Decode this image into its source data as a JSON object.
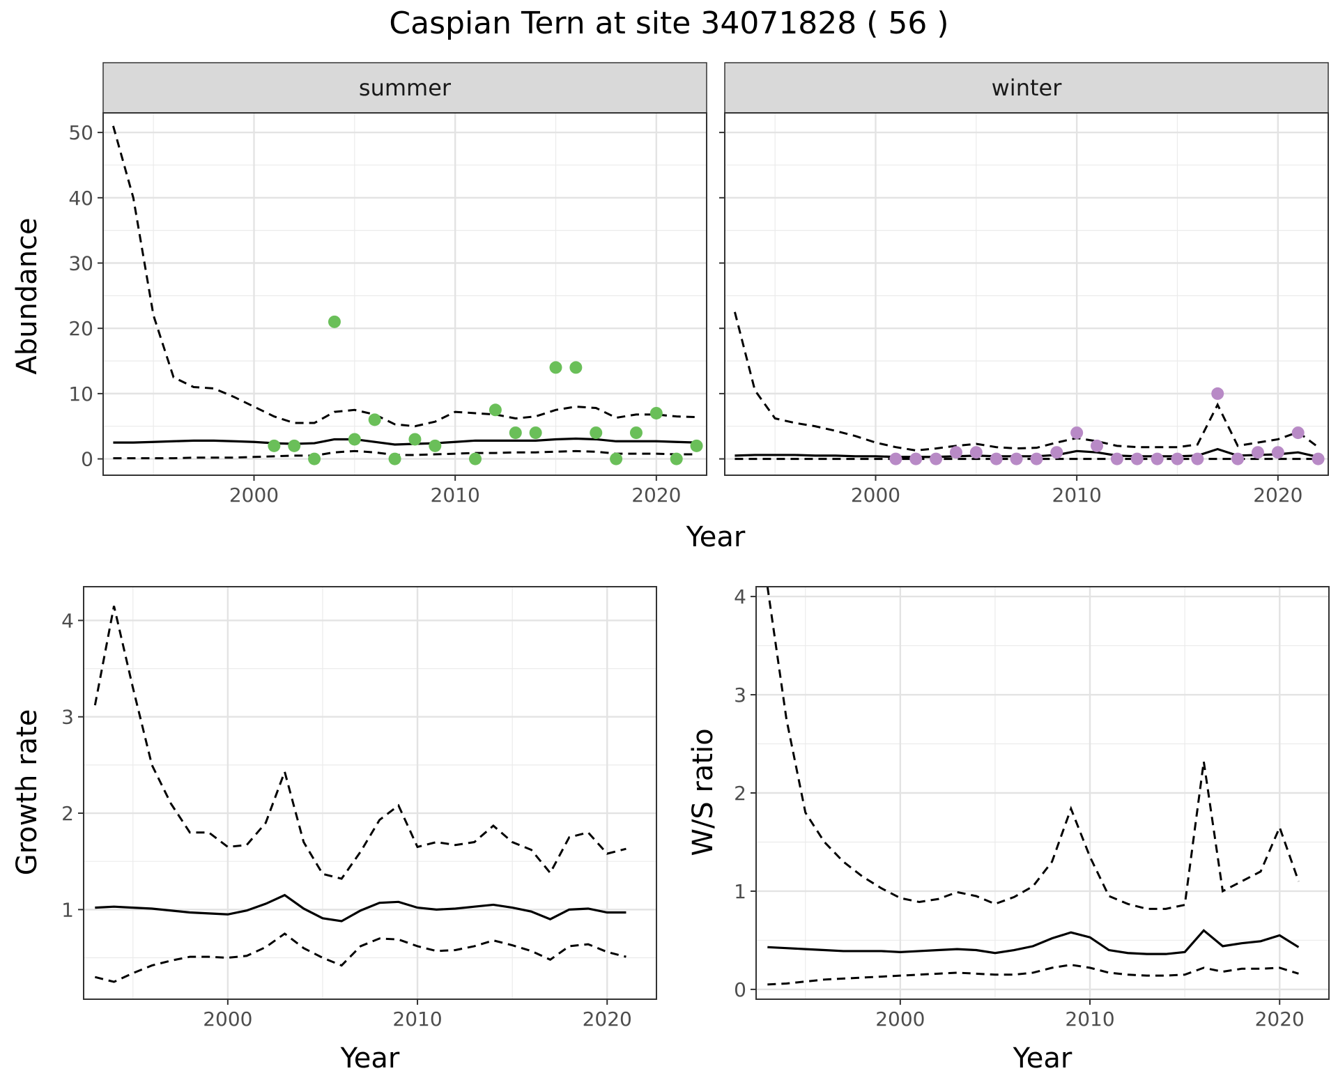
{
  "title": "Caspian Tern at site 34071828 ( 56 )",
  "colors": {
    "summer_points": "#6abf59",
    "winter_points": "#b88ac6",
    "lines": "#000000"
  },
  "chart_data": [
    {
      "id": "abundance-summer",
      "type": "line",
      "facet": "summer",
      "ylabel": "Abundance",
      "xlim": [
        1992.5,
        2022.5
      ],
      "ylim": [
        -2.5,
        53
      ],
      "xticks": [
        2000,
        2010,
        2020
      ],
      "yticks": [
        0,
        10,
        20,
        30,
        40,
        50
      ],
      "grid": true,
      "series": [
        {
          "role": "mean",
          "x": [
            1993,
            1994,
            1995,
            1996,
            1997,
            1998,
            1999,
            2000,
            2001,
            2002,
            2003,
            2004,
            2005,
            2006,
            2007,
            2008,
            2009,
            2010,
            2011,
            2012,
            2013,
            2014,
            2015,
            2016,
            2017,
            2018,
            2019,
            2020,
            2021,
            2022
          ],
          "values": [
            2.5,
            2.5,
            2.6,
            2.7,
            2.8,
            2.8,
            2.7,
            2.6,
            2.4,
            2.3,
            2.4,
            3.0,
            3.0,
            2.6,
            2.2,
            2.3,
            2.4,
            2.6,
            2.8,
            2.8,
            2.8,
            2.8,
            3.0,
            3.1,
            3.0,
            2.7,
            2.7,
            2.7,
            2.6,
            2.5
          ]
        },
        {
          "role": "upper",
          "x": [
            1993,
            1994,
            1995,
            1996,
            1997,
            1998,
            1999,
            2000,
            2001,
            2002,
            2003,
            2004,
            2005,
            2006,
            2007,
            2008,
            2009,
            2010,
            2011,
            2012,
            2013,
            2014,
            2015,
            2016,
            2017,
            2018,
            2019,
            2020,
            2021,
            2022
          ],
          "values": [
            51,
            40,
            22,
            12.5,
            11,
            10.8,
            9.5,
            8,
            6.5,
            5.5,
            5.5,
            7.2,
            7.5,
            6.8,
            5.3,
            5.0,
            5.7,
            7.2,
            7.0,
            6.8,
            6.2,
            6.5,
            7.5,
            8.0,
            7.8,
            6.3,
            6.8,
            6.8,
            6.5,
            6.4
          ]
        },
        {
          "role": "lower",
          "x": [
            1993,
            1994,
            1995,
            1996,
            1997,
            1998,
            1999,
            2000,
            2001,
            2002,
            2003,
            2004,
            2005,
            2006,
            2007,
            2008,
            2009,
            2010,
            2011,
            2012,
            2013,
            2014,
            2015,
            2016,
            2017,
            2018,
            2019,
            2020,
            2021,
            2022
          ],
          "values": [
            0.1,
            0.1,
            0.1,
            0.1,
            0.2,
            0.2,
            0.2,
            0.3,
            0.4,
            0.5,
            0.5,
            1.0,
            1.2,
            1.0,
            0.6,
            0.6,
            0.7,
            0.8,
            0.9,
            0.9,
            1.0,
            1.0,
            1.1,
            1.2,
            1.1,
            0.8,
            0.8,
            0.8,
            0.7,
            0.7
          ]
        }
      ],
      "points": {
        "x": [
          2001,
          2002,
          2003,
          2004,
          2005,
          2006,
          2007,
          2008,
          2009,
          2011,
          2012,
          2013,
          2014,
          2015,
          2016,
          2017,
          2018,
          2019,
          2020,
          2021,
          2022
        ],
        "values": [
          2,
          2,
          0,
          21,
          3,
          6,
          0,
          3,
          2,
          0,
          7.5,
          4,
          4,
          14,
          14,
          4,
          0,
          4,
          7,
          0,
          2
        ]
      }
    },
    {
      "id": "abundance-winter",
      "type": "line",
      "facet": "winter",
      "ylabel": "",
      "xlim": [
        1992.5,
        2022.5
      ],
      "ylim": [
        -2.5,
        53
      ],
      "xticks": [
        2000,
        2010,
        2020
      ],
      "yticks": [
        0,
        10,
        20,
        30,
        40,
        50
      ],
      "grid": true,
      "series": [
        {
          "role": "mean",
          "x": [
            1993,
            1994,
            1995,
            1996,
            1997,
            1998,
            1999,
            2000,
            2001,
            2002,
            2003,
            2004,
            2005,
            2006,
            2007,
            2008,
            2009,
            2010,
            2011,
            2012,
            2013,
            2014,
            2015,
            2016,
            2017,
            2018,
            2019,
            2020,
            2021,
            2022
          ],
          "values": [
            0.5,
            0.6,
            0.6,
            0.6,
            0.5,
            0.5,
            0.4,
            0.4,
            0.3,
            0.3,
            0.3,
            0.4,
            0.5,
            0.4,
            0.4,
            0.4,
            0.6,
            1.2,
            1.0,
            0.5,
            0.4,
            0.4,
            0.4,
            0.5,
            1.5,
            0.5,
            0.6,
            0.7,
            1.0,
            0.3
          ]
        },
        {
          "role": "upper",
          "x": [
            1993,
            1994,
            1995,
            1996,
            1997,
            1998,
            1999,
            2000,
            2001,
            2002,
            2003,
            2004,
            2005,
            2006,
            2007,
            2008,
            2009,
            2010,
            2011,
            2012,
            2013,
            2014,
            2015,
            2016,
            2017,
            2018,
            2019,
            2020,
            2021,
            2022
          ],
          "values": [
            22.5,
            10.5,
            6.2,
            5.5,
            5.0,
            4.3,
            3.5,
            2.5,
            1.8,
            1.3,
            1.6,
            2.0,
            2.3,
            1.8,
            1.6,
            1.7,
            2.5,
            3.2,
            2.7,
            2.0,
            1.8,
            1.8,
            1.8,
            2.2,
            8.3,
            2.0,
            2.5,
            3.0,
            4.1,
            1.8
          ]
        },
        {
          "role": "lower",
          "x": [
            1993,
            1994,
            1995,
            1996,
            1997,
            1998,
            1999,
            2000,
            2001,
            2002,
            2003,
            2004,
            2005,
            2006,
            2007,
            2008,
            2009,
            2010,
            2011,
            2012,
            2013,
            2014,
            2015,
            2016,
            2017,
            2018,
            2019,
            2020,
            2021,
            2022
          ],
          "values": [
            0,
            0,
            0,
            0,
            0,
            0,
            0,
            0,
            0,
            0,
            0,
            0,
            0,
            0,
            0,
            0,
            0,
            0,
            0,
            0,
            0,
            0,
            0,
            0,
            0,
            0,
            0,
            0,
            0,
            0
          ]
        }
      ],
      "points": {
        "x": [
          2001,
          2002,
          2003,
          2004,
          2005,
          2006,
          2007,
          2008,
          2009,
          2010,
          2011,
          2012,
          2013,
          2014,
          2015,
          2016,
          2017,
          2018,
          2019,
          2020,
          2021,
          2022
        ],
        "values": [
          0,
          0,
          0,
          1,
          1,
          0,
          0,
          0,
          1,
          4,
          2,
          0,
          0,
          0,
          0,
          0,
          10,
          0,
          1,
          1,
          4,
          0
        ]
      }
    },
    {
      "id": "growth-rate",
      "type": "line",
      "xlabel": "Year",
      "ylabel": "Growth rate",
      "xlim": [
        1992.4,
        2022.6
      ],
      "ylim": [
        0.07,
        4.35
      ],
      "xticks": [
        2000,
        2010,
        2020
      ],
      "yticks": [
        1,
        2,
        3,
        4
      ],
      "grid": true,
      "series": [
        {
          "role": "mean",
          "x": [
            1993,
            1994,
            1995,
            1996,
            1997,
            1998,
            1999,
            2000,
            2001,
            2002,
            2003,
            2004,
            2005,
            2006,
            2007,
            2008,
            2009,
            2010,
            2011,
            2012,
            2013,
            2014,
            2015,
            2016,
            2017,
            2018,
            2019,
            2020,
            2021
          ],
          "values": [
            1.02,
            1.03,
            1.02,
            1.01,
            0.99,
            0.97,
            0.96,
            0.95,
            0.99,
            1.06,
            1.15,
            1.01,
            0.91,
            0.88,
            0.99,
            1.07,
            1.08,
            1.02,
            1.0,
            1.01,
            1.03,
            1.05,
            1.02,
            0.98,
            0.9,
            1.0,
            1.01,
            0.97,
            0.97
          ]
        },
        {
          "role": "upper",
          "x": [
            1993,
            1994,
            1995,
            1996,
            1997,
            1998,
            1999,
            2000,
            2001,
            2002,
            2003,
            2004,
            2005,
            2006,
            2007,
            2008,
            2009,
            2010,
            2011,
            2012,
            2013,
            2014,
            2015,
            2016,
            2017,
            2018,
            2019,
            2020,
            2021
          ],
          "values": [
            3.12,
            4.15,
            3.3,
            2.5,
            2.1,
            1.8,
            1.8,
            1.65,
            1.67,
            1.9,
            2.43,
            1.7,
            1.37,
            1.32,
            1.6,
            1.93,
            2.08,
            1.65,
            1.7,
            1.67,
            1.7,
            1.87,
            1.7,
            1.62,
            1.38,
            1.75,
            1.8,
            1.58,
            1.63
          ]
        },
        {
          "role": "lower",
          "x": [
            1993,
            1994,
            1995,
            1996,
            1997,
            1998,
            1999,
            2000,
            2001,
            2002,
            2003,
            2004,
            2005,
            2006,
            2007,
            2008,
            2009,
            2010,
            2011,
            2012,
            2013,
            2014,
            2015,
            2016,
            2017,
            2018,
            2019,
            2020,
            2021
          ],
          "values": [
            0.3,
            0.25,
            0.34,
            0.42,
            0.47,
            0.51,
            0.51,
            0.5,
            0.52,
            0.61,
            0.75,
            0.6,
            0.5,
            0.42,
            0.62,
            0.7,
            0.69,
            0.62,
            0.57,
            0.58,
            0.62,
            0.68,
            0.63,
            0.57,
            0.48,
            0.62,
            0.64,
            0.56,
            0.51
          ]
        }
      ]
    },
    {
      "id": "ws-ratio",
      "type": "line",
      "xlabel": "Year",
      "ylabel": "W/S ratio",
      "xlim": [
        1992.4,
        2022.6
      ],
      "ylim": [
        -0.1,
        4.1
      ],
      "xticks": [
        2000,
        2010,
        2020
      ],
      "yticks": [
        0,
        1,
        2,
        3,
        4
      ],
      "grid": true,
      "series": [
        {
          "role": "mean",
          "x": [
            1993,
            1994,
            1995,
            1996,
            1997,
            1998,
            1999,
            2000,
            2001,
            2002,
            2003,
            2004,
            2005,
            2006,
            2007,
            2008,
            2009,
            2010,
            2011,
            2012,
            2013,
            2014,
            2015,
            2016,
            2017,
            2018,
            2019,
            2020,
            2021
          ],
          "values": [
            0.43,
            0.42,
            0.41,
            0.4,
            0.39,
            0.39,
            0.39,
            0.38,
            0.39,
            0.4,
            0.41,
            0.4,
            0.37,
            0.4,
            0.44,
            0.52,
            0.58,
            0.53,
            0.4,
            0.37,
            0.36,
            0.36,
            0.38,
            0.6,
            0.44,
            0.47,
            0.49,
            0.55,
            0.43
          ]
        },
        {
          "role": "upper",
          "x": [
            1993,
            1994,
            1995,
            1996,
            1997,
            1998,
            1999,
            2000,
            2001,
            2002,
            2003,
            2004,
            2005,
            2006,
            2007,
            2008,
            2009,
            2010,
            2011,
            2012,
            2013,
            2014,
            2015,
            2016,
            2017,
            2018,
            2019,
            2020,
            2021
          ],
          "values": [
            4.1,
            2.75,
            1.8,
            1.5,
            1.3,
            1.15,
            1.03,
            0.93,
            0.89,
            0.92,
            0.99,
            0.95,
            0.87,
            0.94,
            1.05,
            1.3,
            1.84,
            1.35,
            0.95,
            0.87,
            0.82,
            0.82,
            0.86,
            2.32,
            1.0,
            1.1,
            1.2,
            1.65,
            1.1
          ]
        },
        {
          "role": "lower",
          "x": [
            1993,
            1994,
            1995,
            1996,
            1997,
            1998,
            1999,
            2000,
            2001,
            2002,
            2003,
            2004,
            2005,
            2006,
            2007,
            2008,
            2009,
            2010,
            2011,
            2012,
            2013,
            2014,
            2015,
            2016,
            2017,
            2018,
            2019,
            2020,
            2021
          ],
          "values": [
            0.05,
            0.06,
            0.08,
            0.1,
            0.11,
            0.12,
            0.13,
            0.14,
            0.15,
            0.16,
            0.17,
            0.16,
            0.15,
            0.15,
            0.17,
            0.22,
            0.25,
            0.22,
            0.17,
            0.15,
            0.14,
            0.14,
            0.15,
            0.22,
            0.18,
            0.21,
            0.21,
            0.22,
            0.16
          ]
        }
      ]
    }
  ]
}
